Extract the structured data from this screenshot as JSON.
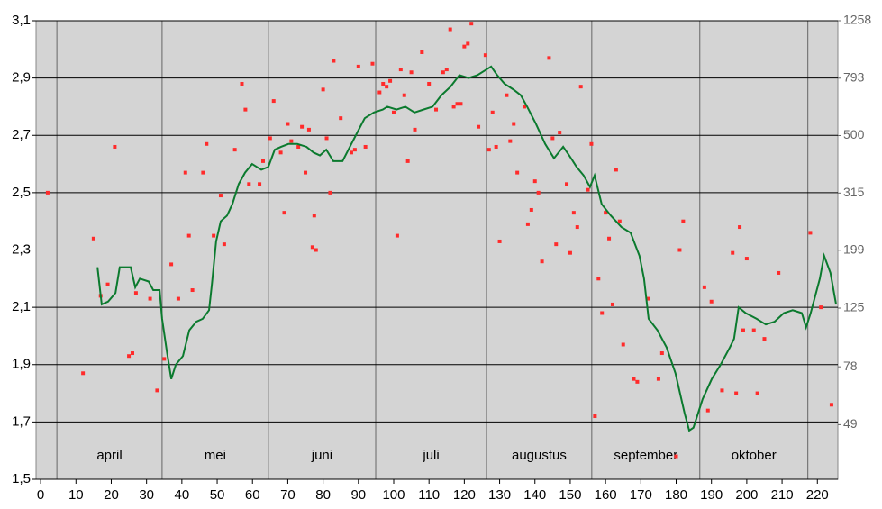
{
  "chart_data": {
    "type": "scatter",
    "xlim": [
      -1.3,
      225.8
    ],
    "xticks": [
      0,
      10,
      20,
      30,
      40,
      50,
      60,
      70,
      80,
      90,
      100,
      110,
      120,
      130,
      140,
      150,
      160,
      170,
      180,
      190,
      200,
      210,
      220
    ],
    "ylim": [
      1.5,
      3.1
    ],
    "yticks": [
      {
        "value": 1.5,
        "label": "1,5"
      },
      {
        "value": 1.7,
        "label": "1,7"
      },
      {
        "value": 1.9,
        "label": "1,9"
      },
      {
        "value": 2.1,
        "label": "2,1"
      },
      {
        "value": 2.3,
        "label": "2,3"
      },
      {
        "value": 2.5,
        "label": "2,5"
      },
      {
        "value": 2.7,
        "label": "2,7"
      },
      {
        "value": 2.9,
        "label": "2,9"
      },
      {
        "value": 3.1,
        "label": "3,1"
      }
    ],
    "y2lim": [
      31.6,
      1258
    ],
    "y2log": true,
    "y2ticks": [
      49,
      78,
      125,
      199,
      315,
      500,
      793,
      1258
    ],
    "grid": true,
    "month_bounds": [
      4.6,
      34.4,
      64.5,
      94.9,
      126.3,
      156.1,
      186.7,
      217.3
    ],
    "months": [
      "april",
      "mei",
      "juni",
      "juli",
      "augustus",
      "september",
      "oktober"
    ],
    "series": [
      {
        "type": "scatter",
        "color": "#ff2b2b",
        "x": [
          2,
          12,
          15,
          17,
          19,
          21,
          25,
          26,
          27,
          31,
          33,
          35,
          37,
          39,
          41,
          42,
          43,
          46,
          47,
          49,
          51,
          52,
          55,
          57,
          58,
          59,
          62,
          63,
          65,
          66,
          68,
          69,
          70,
          71,
          73,
          74,
          75,
          76,
          77,
          77.5,
          78,
          80,
          81,
          82,
          83,
          85,
          88,
          89,
          90,
          92,
          94,
          96,
          97,
          98,
          99,
          100,
          101,
          102,
          103,
          104,
          105,
          106,
          108,
          110,
          112,
          114,
          115,
          116,
          117,
          118,
          119,
          120,
          121,
          122,
          124,
          126,
          127,
          128,
          129,
          130,
          132,
          133,
          134,
          135,
          137,
          138,
          139,
          140,
          141,
          142,
          144,
          145,
          146,
          147,
          149,
          150,
          151,
          152,
          153,
          155,
          156,
          157,
          158,
          159,
          160,
          161,
          162,
          163,
          164,
          165,
          168,
          169,
          172,
          175,
          176,
          180,
          181,
          182,
          188,
          189,
          190,
          193,
          196,
          197,
          198,
          199,
          200,
          202,
          203,
          205,
          209,
          218,
          221,
          224
        ],
        "values": [
          2.5,
          1.87,
          2.34,
          2.14,
          2.18,
          2.66,
          1.93,
          1.94,
          2.15,
          2.13,
          1.81,
          1.92,
          2.25,
          2.13,
          2.57,
          2.35,
          2.16,
          2.57,
          2.67,
          2.35,
          2.49,
          2.32,
          2.65,
          2.88,
          2.79,
          2.53,
          2.53,
          2.61,
          2.69,
          2.82,
          2.64,
          2.43,
          2.74,
          2.68,
          2.66,
          2.73,
          2.57,
          2.72,
          2.31,
          2.42,
          2.3,
          2.86,
          2.69,
          2.5,
          2.96,
          2.76,
          2.64,
          2.65,
          2.94,
          2.66,
          2.95,
          2.85,
          2.88,
          2.87,
          2.89,
          2.78,
          2.35,
          2.93,
          2.84,
          2.61,
          2.92,
          2.72,
          2.99,
          2.88,
          2.79,
          2.92,
          2.93,
          3.07,
          2.8,
          2.81,
          2.81,
          3.01,
          3.02,
          3.09,
          2.73,
          2.98,
          2.65,
          2.78,
          2.66,
          2.33,
          2.84,
          2.68,
          2.74,
          2.57,
          2.8,
          2.39,
          2.44,
          2.54,
          2.5,
          2.26,
          2.97,
          2.69,
          2.32,
          2.71,
          2.53,
          2.29,
          2.43,
          2.38,
          2.87,
          2.51,
          2.67,
          1.72,
          2.2,
          2.08,
          2.43,
          2.34,
          2.11,
          2.58,
          2.4,
          1.97,
          1.85,
          1.84,
          2.13,
          1.85,
          1.94,
          1.58,
          2.3,
          2.4,
          2.17,
          1.74,
          2.12,
          1.81,
          2.29,
          1.8,
          2.38,
          2.02,
          2.27,
          2.02,
          1.8,
          1.99,
          2.22,
          2.36,
          2.1,
          1.76
        ]
      },
      {
        "type": "line",
        "color": "#0b7a2e",
        "x": [
          16.1,
          17.3,
          19.1,
          21.2,
          22.4,
          25.5,
          26.8,
          28.1,
          30.6,
          31.9,
          33.7,
          34.4,
          35.7,
          37,
          38.3,
          40.3,
          42.1,
          44.1,
          45.9,
          47.7,
          48.5,
          49.7,
          51,
          52.8,
          54.3,
          56.1,
          57.9,
          59.9,
          62.5,
          64.5,
          66.3,
          68.1,
          70.2,
          72.7,
          75.3,
          77.3,
          79.1,
          80.9,
          82.9,
          85.5,
          88,
          90.1,
          91.8,
          94.4,
          96.9,
          98.2,
          100.8,
          103.3,
          105.9,
          108.4,
          111,
          113.5,
          116.1,
          118.6,
          121.2,
          123.7,
          126.3,
          127.6,
          129.3,
          131.4,
          133.9,
          136,
          137.8,
          140.3,
          142.9,
          145.4,
          148,
          149.7,
          151.8,
          153.8,
          155.6,
          156.9,
          158.9,
          161.5,
          164.5,
          167.1,
          169.6,
          170.9,
          172.2,
          174.7,
          177.3,
          179.8,
          182.4,
          183.7,
          184.9,
          187.5,
          190.1,
          192.6,
          195.2,
          196.4,
          197.7,
          199.7,
          202.8,
          205.4,
          207.9,
          210.5,
          213,
          215.6,
          216.8,
          218.1,
          220.7,
          221.9,
          223.7,
          225.3
        ],
        "values": [
          2.24,
          2.11,
          2.12,
          2.15,
          2.24,
          2.24,
          2.17,
          2.2,
          2.19,
          2.16,
          2.16,
          2.06,
          1.95,
          1.85,
          1.9,
          1.93,
          2.02,
          2.05,
          2.06,
          2.09,
          2.18,
          2.33,
          2.4,
          2.42,
          2.46,
          2.53,
          2.57,
          2.6,
          2.58,
          2.59,
          2.65,
          2.66,
          2.67,
          2.67,
          2.66,
          2.64,
          2.63,
          2.65,
          2.61,
          2.61,
          2.67,
          2.72,
          2.76,
          2.78,
          2.79,
          2.8,
          2.79,
          2.8,
          2.78,
          2.79,
          2.8,
          2.84,
          2.87,
          2.91,
          2.9,
          2.91,
          2.93,
          2.94,
          2.91,
          2.88,
          2.86,
          2.84,
          2.8,
          2.74,
          2.67,
          2.62,
          2.66,
          2.63,
          2.59,
          2.56,
          2.52,
          2.56,
          2.46,
          2.42,
          2.38,
          2.36,
          2.28,
          2.2,
          2.06,
          2.02,
          1.96,
          1.87,
          1.73,
          1.67,
          1.68,
          1.78,
          1.85,
          1.9,
          1.96,
          1.99,
          2.1,
          2.08,
          2.06,
          2.04,
          2.05,
          2.08,
          2.09,
          2.08,
          2.03,
          2.08,
          2.2,
          2.28,
          2.22,
          2.11
        ]
      }
    ]
  }
}
